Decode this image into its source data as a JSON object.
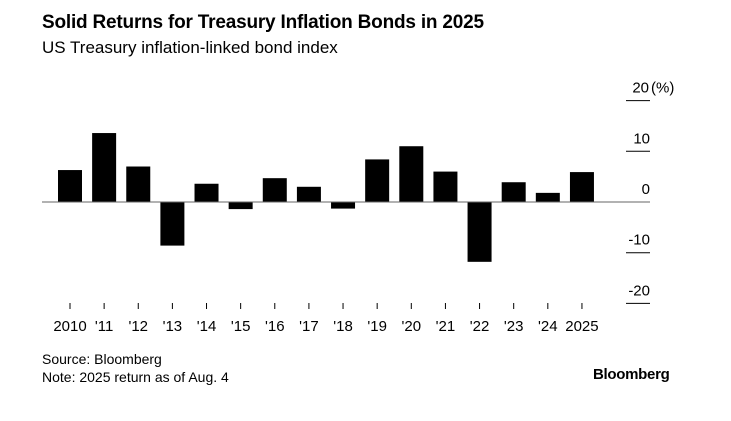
{
  "chart_data": {
    "type": "bar",
    "title": "Solid Returns for Treasury Inflation Bonds in 2025",
    "subtitle": "US Treasury inflation-linked bond index",
    "categories": [
      "2010",
      "'11",
      "'12",
      "'13",
      "'14",
      "'15",
      "'16",
      "'17",
      "'18",
      "'19",
      "'20",
      "'21",
      "'22",
      "'23",
      "'24",
      "2025"
    ],
    "values": [
      6.3,
      13.6,
      7.0,
      -8.6,
      3.6,
      -1.4,
      4.7,
      3.0,
      -1.3,
      8.4,
      11.0,
      6.0,
      -11.8,
      3.9,
      1.8,
      5.9
    ],
    "ylim": [
      -20,
      20
    ],
    "yticks": [
      20,
      10,
      0,
      -10,
      -20
    ],
    "yunit": "(%)",
    "ytick_labels": [
      "20",
      "10",
      "0",
      "-10",
      "-20"
    ],
    "y_axis_side": "right",
    "grid": false,
    "bar_color": "#000000",
    "baseline_color": "#666666"
  },
  "footer": {
    "source": "Source: Bloomberg",
    "note": "Note: 2025 return as of Aug. 4",
    "logo": "Bloomberg"
  }
}
